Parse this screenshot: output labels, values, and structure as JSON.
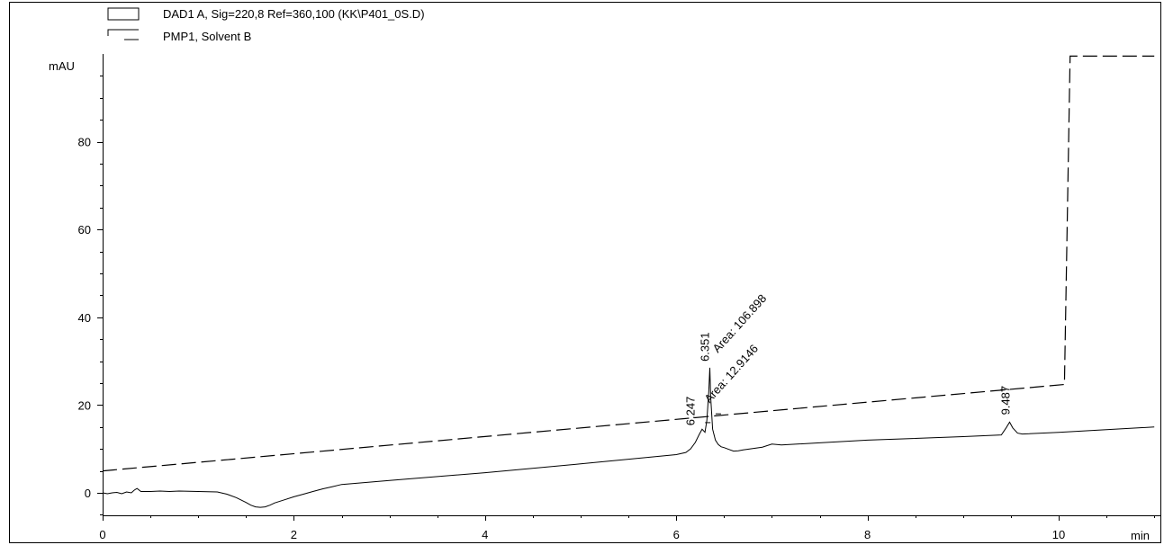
{
  "legend": [
    {
      "symbol": "solid-box",
      "label": "DAD1 A, Sig=220,8 Ref=360,100 (KK\\P401_0S.D)"
    },
    {
      "symbol": "dash-bracket",
      "label": "PMP1, Solvent B"
    }
  ],
  "chart_data": {
    "type": "line",
    "ylabel": "mAU",
    "xlabel": "min",
    "xlim": [
      0,
      11
    ],
    "ylim": [
      -5,
      100
    ],
    "x_ticks": [
      0,
      2,
      4,
      6,
      8,
      10
    ],
    "y_ticks": [
      0,
      20,
      40,
      60,
      80
    ],
    "grid": false,
    "legend_position": "top-left",
    "series": [
      {
        "name": "DAD1 A, Sig=220,8 Ref=360,100 (KK\\P401_0S.D)",
        "style": "solid",
        "x": [
          0,
          0.05,
          0.1,
          0.15,
          0.2,
          0.25,
          0.3,
          0.33,
          0.36,
          0.4,
          0.5,
          0.6,
          0.7,
          0.8,
          1.0,
          1.2,
          1.3,
          1.4,
          1.5,
          1.55,
          1.6,
          1.65,
          1.7,
          1.75,
          1.8,
          1.9,
          2.0,
          2.1,
          2.2,
          2.3,
          2.4,
          2.5,
          3.0,
          4.0,
          5.0,
          6.0,
          6.1,
          6.15,
          6.2,
          6.24,
          6.27,
          6.3,
          6.32,
          6.34,
          6.351,
          6.36,
          6.38,
          6.41,
          6.44,
          6.47,
          6.5,
          6.55,
          6.6,
          6.65,
          6.7,
          6.8,
          6.9,
          7.0,
          7.1,
          7.5,
          8.0,
          9.0,
          9.4,
          9.45,
          9.487,
          9.52,
          9.57,
          9.62,
          10.0,
          11.0
        ],
        "values": [
          0,
          -0.2,
          0,
          0.1,
          -0.2,
          0.2,
          0,
          0.6,
          1.0,
          0.3,
          0.3,
          0.4,
          0.3,
          0.4,
          0.3,
          0.2,
          -0.3,
          -1.1,
          -2.2,
          -2.8,
          -3.2,
          -3.3,
          -3.2,
          -2.8,
          -2.3,
          -1.6,
          -0.9,
          -0.3,
          0.3,
          0.9,
          1.4,
          1.9,
          2.8,
          4.6,
          6.6,
          8.7,
          9.2,
          10.0,
          11.5,
          13.3,
          14.5,
          13.8,
          16.5,
          23.0,
          28.5,
          22.0,
          14.5,
          12.0,
          11.0,
          10.5,
          10.3,
          9.9,
          9.5,
          9.6,
          9.8,
          10.1,
          10.4,
          11.1,
          10.9,
          11.4,
          12.0,
          12.8,
          13.2,
          14.8,
          16.1,
          14.8,
          13.6,
          13.4,
          13.8,
          15.0
        ]
      },
      {
        "name": "PMP1, Solvent B",
        "style": "dashed",
        "x": [
          0,
          10.06,
          10.06,
          10.12,
          11
        ],
        "values": [
          5,
          24.7,
          24.7,
          99.5,
          99.5
        ]
      }
    ],
    "annotations": [
      {
        "text": "6.247",
        "x": 6.247,
        "y": 14.5
      },
      {
        "text": "6.351",
        "x": 6.351,
        "y": 28.5
      },
      {
        "text": "Area: 106.898",
        "x": 6.36,
        "y": 28.5
      },
      {
        "text": "Area: 12.9146",
        "x": 6.33,
        "y": 18.5
      },
      {
        "text": "9.487",
        "x": 9.487,
        "y": 16.1
      }
    ]
  }
}
